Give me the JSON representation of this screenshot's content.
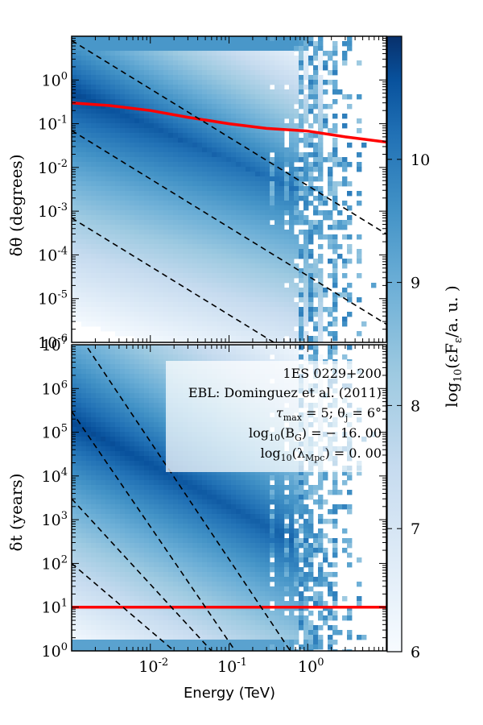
{
  "chart_data": [
    {
      "type": "heatmap",
      "panel": "top",
      "ylabel": "δθ (degrees)",
      "xlabel": "",
      "x_scale": "log",
      "y_scale": "log",
      "xlim": [
        0.001,
        10
      ],
      "ylim": [
        1e-06,
        10
      ],
      "y_tick_labels": [
        {
          "base": "10",
          "exp": "0",
          "value": 1
        },
        {
          "base": "10",
          "exp": "-1",
          "value": 0.1
        },
        {
          "base": "10",
          "exp": "-2",
          "value": 0.01
        },
        {
          "base": "10",
          "exp": "-3",
          "value": 0.001
        },
        {
          "base": "10",
          "exp": "-4",
          "value": 0.0001
        },
        {
          "base": "10",
          "exp": "-5",
          "value": 1e-05
        },
        {
          "base": "10",
          "exp": "-6",
          "value": 1e-06
        }
      ],
      "series": [
        {
          "style": "solid-red",
          "x": [
            0.001,
            0.003,
            0.01,
            0.03,
            0.1,
            0.3,
            1,
            3,
            10
          ],
          "y": [
            0.3,
            0.26,
            0.2,
            0.14,
            0.1,
            0.078,
            0.068,
            0.05,
            0.038
          ]
        },
        {
          "style": "dashed-black",
          "x": [
            0.001,
            10
          ],
          "y": [
            8.0,
            0.0003
          ]
        },
        {
          "style": "dashed-black",
          "x": [
            0.001,
            10
          ],
          "y": [
            0.07,
            2.6e-06
          ]
        },
        {
          "style": "dashed-black",
          "x": [
            0.001,
            10
          ],
          "y": [
            0.0007,
            2.6e-08
          ]
        }
      ]
    },
    {
      "type": "heatmap",
      "panel": "bottom",
      "ylabel": "δt (years)",
      "xlabel": "Energy (TeV)",
      "x_scale": "log",
      "y_scale": "log",
      "xlim": [
        0.001,
        10
      ],
      "ylim": [
        1,
        10000000
      ],
      "x_tick_labels": [
        {
          "base": "10",
          "exp": "-2",
          "value": 0.01
        },
        {
          "base": "10",
          "exp": "-1",
          "value": 0.1
        },
        {
          "base": "10",
          "exp": "0",
          "value": 1
        }
      ],
      "y_tick_labels": [
        {
          "base": "10",
          "exp": "7",
          "value": 10000000
        },
        {
          "base": "10",
          "exp": "6",
          "value": 1000000
        },
        {
          "base": "10",
          "exp": "5",
          "value": 100000
        },
        {
          "base": "10",
          "exp": "4",
          "value": 10000
        },
        {
          "base": "10",
          "exp": "3",
          "value": 1000
        },
        {
          "base": "10",
          "exp": "2",
          "value": 100
        },
        {
          "base": "10",
          "exp": "1",
          "value": 10
        },
        {
          "base": "10",
          "exp": "0",
          "value": 1
        }
      ],
      "series": [
        {
          "style": "solid-red",
          "x": [
            0.001,
            10
          ],
          "y": [
            10,
            10
          ]
        },
        {
          "style": "dashed-black",
          "x": [
            0.001,
            0.6
          ],
          "y": [
            30000000,
            1
          ]
        },
        {
          "style": "dashed-black",
          "x": [
            0.001,
            0.12
          ],
          "y": [
            300000,
            1
          ]
        },
        {
          "style": "dashed-black",
          "x": [
            0.001,
            0.06
          ],
          "y": [
            3000,
            1
          ]
        },
        {
          "style": "dashed-black",
          "x": [
            0.001,
            0.02
          ],
          "y": [
            100,
            1
          ]
        }
      ],
      "annotation": {
        "line1": "1ES 0229+200",
        "line2": "EBL: Dominguez et al. (2011)",
        "line3_tau": "τ",
        "line3_tau_sub": "max",
        "line3_rest": " = 5;  θ",
        "line3_theta_sub": "j",
        "line3_end": " = 6°",
        "line4_pre": "log",
        "line4_sub": "10",
        "line4_mid": "(B",
        "line4_msub": "G",
        "line4_end": ") = − 16. 00",
        "line5_pre": "log",
        "line5_sub": "10",
        "line5_mid": "(λ",
        "line5_msub": "Mpc",
        "line5_end": ") = 0. 00"
      }
    }
  ],
  "colorbar": {
    "range": [
      6,
      11
    ],
    "tick_labels": [
      "6",
      "7",
      "8",
      "9",
      "10"
    ],
    "label_pre": "log",
    "label_sub": "10",
    "label_mid": "(εF",
    "label_msub": "ε",
    "label_end": "/a. u. )",
    "color_low": "#f7fbff",
    "color_high": "#08306b"
  },
  "colors": {
    "red_line": "#ff0000",
    "dashed_line": "#000000"
  }
}
